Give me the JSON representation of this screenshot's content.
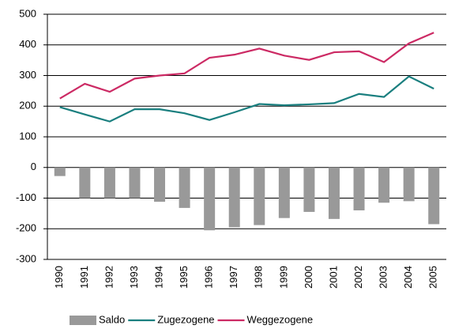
{
  "chart_data": {
    "type": "combo",
    "categories": [
      "1990",
      "1991",
      "1992",
      "1993",
      "1994",
      "1995",
      "1996",
      "1997",
      "1998",
      "1999",
      "2000",
      "2001",
      "2002",
      "2003",
      "2004",
      "2005"
    ],
    "series": [
      {
        "name": "Saldo",
        "type": "bar",
        "color": "#999999",
        "values": [
          -28,
          -100,
          -100,
          -100,
          -112,
          -132,
          -205,
          -195,
          -188,
          -165,
          -145,
          -168,
          -140,
          -115,
          -110,
          -185
        ]
      },
      {
        "name": "Zugezogene",
        "type": "line",
        "color": "#1a7f7f",
        "values": [
          197,
          173,
          150,
          190,
          190,
          177,
          155,
          180,
          207,
          203,
          206,
          210,
          240,
          230,
          297,
          257
        ]
      },
      {
        "name": "Weggezogene",
        "type": "line",
        "color": "#cc2a64",
        "values": [
          225,
          273,
          247,
          290,
          300,
          307,
          358,
          368,
          388,
          365,
          351,
          376,
          379,
          344,
          405,
          440
        ]
      }
    ],
    "ylim": [
      -300,
      500
    ],
    "yticks": [
      -300,
      -200,
      -100,
      0,
      100,
      200,
      300,
      400,
      500
    ],
    "grid": true,
    "legend": "bottom"
  }
}
